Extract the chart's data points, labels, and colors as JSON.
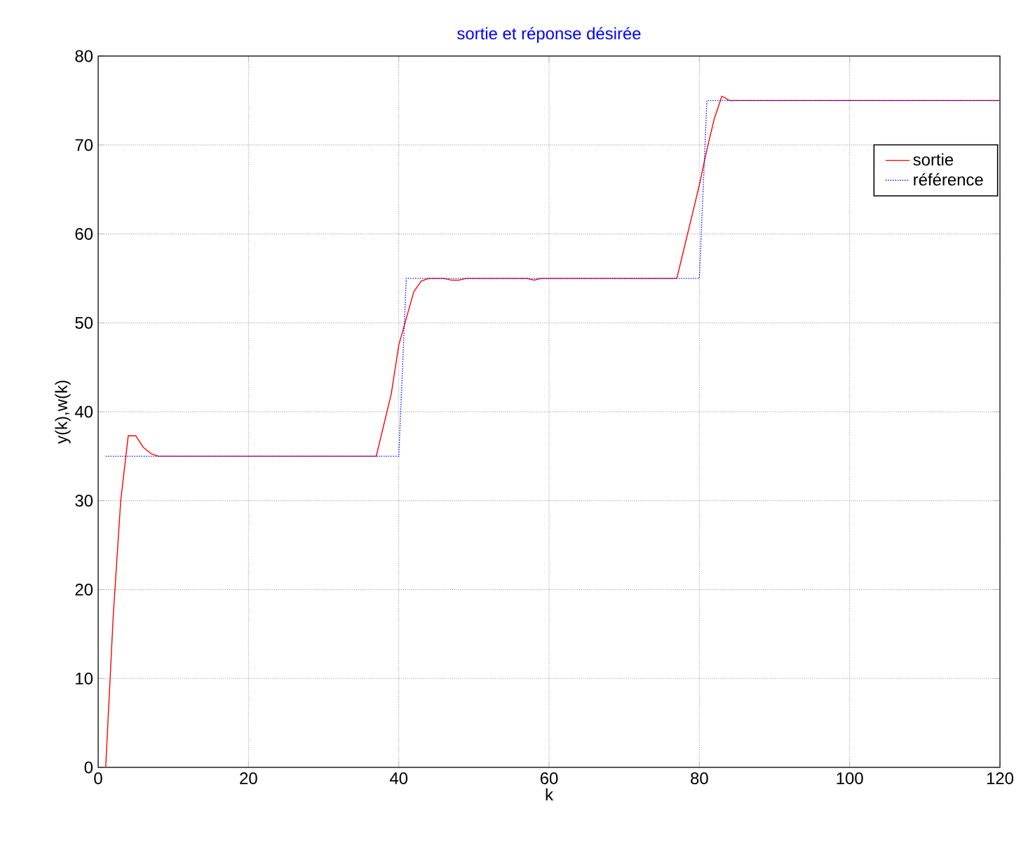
{
  "chart_data": {
    "type": "line",
    "title": "sortie et réponse désirée",
    "xlabel": "k",
    "ylabel": "y(k),w(k)",
    "xlim": [
      0,
      120
    ],
    "ylim": [
      0,
      80
    ],
    "xticks": [
      0,
      20,
      40,
      60,
      80,
      100,
      120
    ],
    "yticks": [
      0,
      10,
      20,
      30,
      40,
      50,
      60,
      70,
      80
    ],
    "grid": true,
    "legend": "top right",
    "marker": "none",
    "series": [
      {
        "name": "sortie",
        "color": "#ff0000",
        "line_style": "solid",
        "x": [
          1,
          2,
          3,
          4,
          5,
          6,
          7,
          8,
          37,
          38,
          39,
          40,
          41,
          42,
          43,
          44,
          45,
          46,
          47,
          48,
          49,
          57,
          58,
          59,
          77,
          78,
          79,
          80,
          81,
          82,
          83,
          84,
          120
        ],
        "values": [
          0,
          17,
          30,
          37.3,
          37.3,
          36,
          35.3,
          35,
          35,
          38.5,
          42,
          47.5,
          50.5,
          53.5,
          54.7,
          55,
          55,
          55,
          54.8,
          54.8,
          55,
          55,
          54.8,
          55,
          55,
          58.5,
          62,
          65.5,
          69.5,
          73,
          75.5,
          75,
          75
        ]
      },
      {
        "name": "référence",
        "color": "#0000ff",
        "line_style": "dotted",
        "x": [
          1,
          40,
          41,
          80,
          81,
          120
        ],
        "values": [
          35,
          35,
          55,
          55,
          75,
          75
        ]
      }
    ]
  }
}
